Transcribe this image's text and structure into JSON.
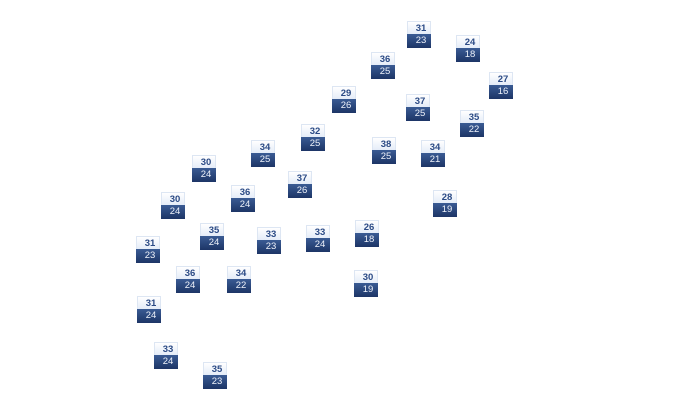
{
  "colors": {
    "high_text": "#2b4a85",
    "low_bg": "#1d3566",
    "low_text": "#eef2fa"
  },
  "markers": [
    {
      "high": "31",
      "low": "23"
    },
    {
      "high": "24",
      "low": "18"
    },
    {
      "high": "36",
      "low": "25"
    },
    {
      "high": "27",
      "low": "16"
    },
    {
      "high": "29",
      "low": "26"
    },
    {
      "high": "37",
      "low": "25"
    },
    {
      "high": "35",
      "low": "22"
    },
    {
      "high": "32",
      "low": "25"
    },
    {
      "high": "38",
      "low": "25"
    },
    {
      "high": "34",
      "low": "21"
    },
    {
      "high": "34",
      "low": "25"
    },
    {
      "high": "30",
      "low": "24"
    },
    {
      "high": "37",
      "low": "26"
    },
    {
      "high": "36",
      "low": "24"
    },
    {
      "high": "30",
      "low": "24"
    },
    {
      "high": "28",
      "low": "19"
    },
    {
      "high": "35",
      "low": "24"
    },
    {
      "high": "33",
      "low": "23"
    },
    {
      "high": "33",
      "low": "24"
    },
    {
      "high": "26",
      "low": "18"
    },
    {
      "high": "31",
      "low": "23"
    },
    {
      "high": "36",
      "low": "24"
    },
    {
      "high": "34",
      "low": "22"
    },
    {
      "high": "30",
      "low": "19"
    },
    {
      "high": "31",
      "low": "24"
    },
    {
      "high": "33",
      "low": "24"
    },
    {
      "high": "35",
      "low": "23"
    }
  ]
}
